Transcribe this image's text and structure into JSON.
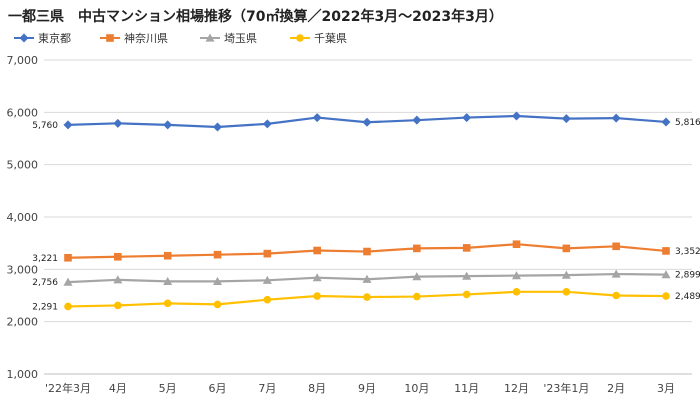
{
  "chart_data": {
    "type": "line",
    "title": "一都三県　中古マンション相場推移（70㎡換算／2022年3月～2023年3月）",
    "categories": [
      "'22年3月",
      "4月",
      "5月",
      "6月",
      "7月",
      "8月",
      "9月",
      "10月",
      "11月",
      "12月",
      "'23年1月",
      "2月",
      "3月"
    ],
    "ylim": [
      1000,
      7000
    ],
    "yticks": [
      "1,000",
      "2,000",
      "3,000",
      "4,000",
      "5,000",
      "6,000",
      "7,000"
    ],
    "legend_position": "top-left",
    "grid": true,
    "series": [
      {
        "name": "東京都",
        "color": "#4472C4",
        "marker": "diamond",
        "values": [
          5760,
          5790,
          5760,
          5720,
          5780,
          5900,
          5810,
          5850,
          5900,
          5930,
          5880,
          5890,
          5816
        ],
        "first_label": "5,760",
        "last_label": "5,816"
      },
      {
        "name": "神奈川県",
        "color": "#ED7D31",
        "marker": "square",
        "values": [
          3221,
          3240,
          3260,
          3280,
          3300,
          3360,
          3340,
          3400,
          3410,
          3480,
          3400,
          3440,
          3352
        ],
        "first_label": "3,221",
        "last_label": "3,352"
      },
      {
        "name": "埼玉県",
        "color": "#A5A5A5",
        "marker": "triangle",
        "values": [
          2756,
          2800,
          2770,
          2770,
          2790,
          2840,
          2810,
          2860,
          2870,
          2880,
          2890,
          2910,
          2899
        ],
        "first_label": "2,756",
        "last_label": "2,899"
      },
      {
        "name": "千葉県",
        "color": "#FFC000",
        "marker": "circle",
        "values": [
          2291,
          2310,
          2350,
          2330,
          2420,
          2490,
          2470,
          2480,
          2520,
          2570,
          2570,
          2500,
          2489
        ],
        "first_label": "2,291",
        "last_label": "2,489"
      }
    ]
  }
}
